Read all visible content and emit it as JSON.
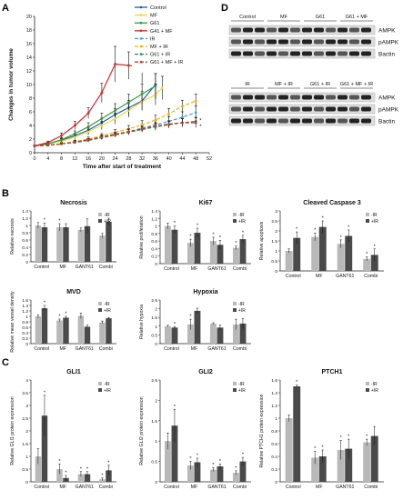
{
  "panel_letters": {
    "A": "A",
    "B": "B",
    "C": "C",
    "D": "D"
  },
  "colors": {
    "dark": "#4a4a4a",
    "light": "#b8b8b8",
    "axis": "#222"
  },
  "chart_data": [
    {
      "id": "A",
      "type": "line",
      "xlabel": "Time after start of treatment",
      "ylabel": "Changes in tumor volume",
      "xlim": [
        0,
        52
      ],
      "ylim": [
        0,
        20
      ],
      "xticks": [
        0,
        4,
        8,
        12,
        16,
        20,
        24,
        28,
        32,
        36,
        40,
        44,
        48,
        52
      ],
      "yticks": [
        0,
        2,
        4,
        6,
        8,
        10,
        12,
        14,
        16,
        18,
        20
      ],
      "series": [
        {
          "name": "Control",
          "color": "#1f5fa8",
          "dash": "",
          "marker": "diamond",
          "x": [
            0,
            4,
            8,
            12,
            16,
            20,
            24,
            28,
            32,
            36
          ],
          "y": [
            1,
            1.3,
            1.8,
            2.5,
            3.3,
            4.4,
            5.6,
            6.6,
            7.6,
            10
          ],
          "err": [
            0.1,
            0.2,
            0.3,
            0.4,
            0.5,
            0.7,
            0.9,
            1.1,
            1.4,
            2.1
          ]
        },
        {
          "name": "MF",
          "color": "#f2d43a",
          "dash": "",
          "marker": "square",
          "x": [
            0,
            4,
            8,
            12,
            16,
            20,
            24,
            28,
            32,
            36,
            38
          ],
          "y": [
            1,
            1.3,
            1.7,
            2.3,
            3.1,
            4,
            5,
            6.2,
            7.5,
            8.5,
            9.5
          ],
          "err": [
            0.1,
            0.2,
            0.3,
            0.4,
            0.5,
            0.6,
            0.8,
            1,
            1.2,
            1.5,
            1.7
          ]
        },
        {
          "name": "G61",
          "color": "#2f9a3a",
          "dash": "",
          "marker": "triangle",
          "x": [
            0,
            4,
            8,
            12,
            16,
            20,
            24,
            28,
            32,
            36
          ],
          "y": [
            1,
            1.3,
            1.9,
            2.8,
            3.8,
            5,
            6.2,
            7.4,
            8.6,
            9.8
          ],
          "err": [
            0.1,
            0.2,
            0.3,
            0.4,
            0.6,
            0.8,
            1,
            1.2,
            1.5,
            1.8
          ]
        },
        {
          "name": "G41 + MF",
          "color": "#d62728",
          "dash": "",
          "marker": "x",
          "x": [
            0,
            4,
            8,
            12,
            16,
            20,
            24,
            28,
            32,
            34
          ],
          "y": [
            1,
            1.5,
            2.5,
            4,
            5.8,
            8.8,
            13,
            12.8,
            12.6,
            16.8
          ],
          "err": [
            0.1,
            0.2,
            0.4,
            0.6,
            0.8,
            1.4,
            2.6,
            2,
            2.4,
            0.8
          ]
        },
        {
          "name": "IR",
          "color": "#3fa0d6",
          "dash": "4,2",
          "marker": "x",
          "x": [
            0,
            4,
            8,
            12,
            16,
            20,
            24,
            28,
            32,
            36,
            40,
            44,
            48
          ],
          "y": [
            1,
            1.1,
            1.3,
            1.6,
            1.9,
            2.3,
            2.7,
            3.1,
            3.6,
            4.1,
            4.6,
            5.2,
            5.9
          ],
          "err": [
            0.1,
            0.1,
            0.1,
            0.2,
            0.2,
            0.3,
            0.3,
            0.4,
            0.5,
            0.6,
            0.7,
            0.8,
            1
          ]
        },
        {
          "name": "MF + IR",
          "color": "#f3b400",
          "dash": "4,2",
          "marker": "circle",
          "x": [
            0,
            4,
            8,
            12,
            16,
            20,
            24,
            28,
            32,
            36,
            40,
            44,
            48
          ],
          "y": [
            1,
            1.1,
            1.3,
            1.6,
            2,
            2.5,
            3,
            3.5,
            4.1,
            4.8,
            5.7,
            6.8,
            7.6
          ],
          "err": [
            0.1,
            0.1,
            0.2,
            0.2,
            0.3,
            0.3,
            0.4,
            0.5,
            0.6,
            0.7,
            0.8,
            0.9,
            1
          ]
        },
        {
          "name": "G61 + IR",
          "color": "#2e8b57",
          "dash": "4,2",
          "marker": "plus",
          "x": [
            0,
            4,
            8,
            12,
            16,
            20,
            24,
            28,
            32,
            36,
            40,
            44,
            48
          ],
          "y": [
            1,
            1.1,
            1.3,
            1.5,
            1.8,
            2.2,
            2.6,
            3,
            3.4,
            3.8,
            4.1,
            4.4,
            4.6
          ],
          "err": [
            0.1,
            0.1,
            0.1,
            0.2,
            0.2,
            0.3,
            0.3,
            0.4,
            0.4,
            0.5,
            0.5,
            0.6,
            0.6
          ]
        },
        {
          "name": "G61 + MF + IR",
          "color": "#c0392b",
          "dash": "4,2",
          "marker": "dash",
          "x": [
            0,
            4,
            8,
            12,
            16,
            20,
            24,
            28,
            32,
            36,
            40,
            44,
            48
          ],
          "y": [
            1,
            1.1,
            1.3,
            1.6,
            1.9,
            2.3,
            2.7,
            3.1,
            3.5,
            3.9,
            4.2,
            4.4,
            4.4
          ],
          "err": [
            0.1,
            0.1,
            0.1,
            0.2,
            0.2,
            0.3,
            0.3,
            0.4,
            0.4,
            0.5,
            0.5,
            0.6,
            0.7
          ]
        }
      ],
      "annotations": [
        "*",
        "*"
      ]
    },
    {
      "id": "Necrosis",
      "type": "bar",
      "title": "Necrosis",
      "ylabel": "Relative necrosis",
      "ylim": [
        0,
        1.4
      ],
      "yticks": [
        "0",
        "0.2",
        "0.4",
        "0.6",
        "0.8",
        "1",
        "1.2",
        "1.4"
      ],
      "categories": [
        "Control",
        "MF",
        "GANT61",
        "Combi"
      ],
      "series": [
        {
          "name": "-IR",
          "values": [
            1,
            0.95,
            0.88,
            0.72
          ],
          "err": [
            0.08,
            0.1,
            0.05,
            0.06
          ]
        },
        {
          "name": "+IR",
          "values": [
            0.95,
            0.95,
            0.98,
            1.1
          ],
          "err": [
            0.12,
            0.1,
            0.2,
            0.1
          ]
        }
      ],
      "stars": [
        "*",
        "*"
      ],
      "legend_loc": "top-right"
    },
    {
      "id": "Ki67",
      "type": "bar",
      "title": "Ki67",
      "ylabel": "Relative proliferation",
      "ylim": [
        0,
        1.4
      ],
      "yticks": [
        "0",
        "0.2",
        "0.4",
        "0.6",
        "0.8",
        "1",
        "1.2",
        "1.4"
      ],
      "categories": [
        "Control",
        "MF",
        "GANT61",
        "Combi"
      ],
      "series": [
        {
          "name": "-IR",
          "values": [
            1,
            0.55,
            0.6,
            0.42
          ],
          "err": [
            0.08,
            0.1,
            0.1,
            0.05
          ]
        },
        {
          "name": "+IR",
          "values": [
            0.9,
            0.82,
            0.5,
            0.65
          ],
          "err": [
            0.1,
            0.12,
            0.12,
            0.1
          ]
        }
      ],
      "stars": [
        "*",
        "*",
        "*",
        "*",
        "*",
        "*",
        "*"
      ],
      "legend_loc": "top-right"
    },
    {
      "id": "Caspase",
      "type": "bar",
      "title": "Cleaved Caspase 3",
      "ylabel": "Relative apoptosis",
      "ylim": [
        0,
        3
      ],
      "yticks": [
        "0",
        "0.5",
        "1",
        "1.5",
        "2",
        "2.5",
        "3"
      ],
      "categories": [
        "Control",
        "MF",
        "GANT61",
        "Combi"
      ],
      "series": [
        {
          "name": "-IR",
          "values": [
            1,
            1.7,
            1.35,
            0.6
          ],
          "err": [
            0.1,
            0.2,
            0.2,
            0.1
          ]
        },
        {
          "name": "+IR",
          "values": [
            1.65,
            2.2,
            1.75,
            0.8
          ],
          "err": [
            0.3,
            0.3,
            0.3,
            0.3
          ]
        }
      ],
      "stars": [
        "*",
        "*",
        "*",
        "*",
        "*",
        "*",
        "*"
      ],
      "legend_loc": "top-right"
    },
    {
      "id": "MVD",
      "type": "bar",
      "title": "MVD",
      "ylabel": "Relative mean vessel density",
      "ylim": [
        0,
        1.6
      ],
      "yticks": [
        "0",
        "0.2",
        "0.4",
        "0.6",
        "0.8",
        "1",
        "1.2",
        "1.4",
        "1.6"
      ],
      "categories": [
        "Control",
        "MF",
        "GANT61",
        "Combi"
      ],
      "series": [
        {
          "name": "-IR",
          "values": [
            1,
            0.85,
            1.02,
            0.78
          ],
          "err": [
            0.06,
            0.05,
            0.1,
            0.05
          ]
        },
        {
          "name": "+IR",
          "values": [
            1.3,
            0.95,
            0.62,
            0.93
          ],
          "err": [
            0.1,
            0.05,
            0.06,
            0.03
          ]
        }
      ],
      "stars": [
        "*",
        "*",
        "*"
      ],
      "legend_loc": "top-right"
    },
    {
      "id": "Hypoxia",
      "type": "bar",
      "title": "Hypoxia",
      "ylabel": "Relative hypoxia",
      "ylim": [
        0,
        2.5
      ],
      "yticks": [
        "0",
        "0.5",
        "1",
        "1.5",
        "2",
        "2.5"
      ],
      "categories": [
        "Control",
        "MF",
        "GANT61",
        "Combi"
      ],
      "series": [
        {
          "name": "-IR",
          "values": [
            1,
            1.1,
            1.15,
            1.1
          ],
          "err": [
            0.05,
            0.3,
            0.05,
            0.3
          ]
        },
        {
          "name": "+IR",
          "values": [
            0.92,
            1.88,
            0.92,
            1.15
          ],
          "err": [
            0.05,
            0.15,
            0.15,
            0.3
          ]
        }
      ],
      "stars": [
        "*",
        "*"
      ],
      "legend_loc": "top-right"
    },
    {
      "id": "GLI1",
      "type": "bar",
      "title": "GLI1",
      "ylabel": "Relative GLI1 protein expression",
      "ylim": [
        0,
        4
      ],
      "yticks": [
        "0",
        "0.5",
        "1",
        "1.5",
        "2",
        "2.5",
        "3",
        "3.5",
        "4"
      ],
      "categories": [
        "Control",
        "MF",
        "GANT61",
        "Combi"
      ],
      "series": [
        {
          "name": "-IR",
          "values": [
            1,
            0.5,
            0.3,
            0.1
          ],
          "err": [
            0.3,
            0.2,
            0.1,
            0.05
          ]
        },
        {
          "name": "+IR",
          "values": [
            2.6,
            0.15,
            0.3,
            0.45
          ],
          "err": [
            0.8,
            0.1,
            0.1,
            0.2
          ]
        }
      ],
      "stars": [
        "*",
        "*",
        "*",
        "*",
        "*",
        "*",
        "*"
      ],
      "legend_loc": "top-right"
    },
    {
      "id": "GLI2",
      "type": "bar",
      "title": "GLI2",
      "ylabel": "Relative GLI2 protein expression",
      "ylim": [
        0,
        2.5
      ],
      "yticks": [
        "0",
        "0.5",
        "1",
        "1.5",
        "2",
        "2.5"
      ],
      "categories": [
        "Control",
        "MF",
        "GANT61",
        "Combi"
      ],
      "series": [
        {
          "name": "-IR",
          "values": [
            1,
            0.4,
            0.3,
            0.22
          ],
          "err": [
            0.2,
            0.1,
            0.05,
            0.05
          ]
        },
        {
          "name": "+IR",
          "values": [
            1.38,
            0.48,
            0.38,
            0.5
          ],
          "err": [
            0.4,
            0.1,
            0.06,
            0.1
          ]
        }
      ],
      "stars": [
        "*",
        "*",
        "*",
        "*",
        "*",
        "*",
        "*"
      ],
      "legend_loc": "top-right"
    },
    {
      "id": "PTCH1",
      "type": "bar",
      "title": "PTCH1",
      "ylabel": "Relative PTCH1 protein expression",
      "ylim": [
        0,
        1.6
      ],
      "yticks": [
        "0",
        "0.2",
        "0.4",
        "0.6",
        "0.8",
        "1",
        "1.2",
        "1.4",
        "1.6"
      ],
      "categories": [
        "Control",
        "MF",
        "GANT61",
        "Combi"
      ],
      "series": [
        {
          "name": "-IR",
          "values": [
            1,
            0.38,
            0.5,
            0.62
          ],
          "err": [
            0.05,
            0.1,
            0.15,
            0.05
          ]
        },
        {
          "name": "+IR",
          "values": [
            1.5,
            0.4,
            0.52,
            0.72
          ],
          "err": [
            0.02,
            0.1,
            0.15,
            0.15
          ]
        }
      ],
      "stars": [
        "*",
        "*",
        "*",
        "*",
        "*",
        "*"
      ],
      "legend_loc": "top-right"
    }
  ],
  "blots": [
    {
      "id": "D1",
      "headers": [
        "Control",
        "MF",
        "G61",
        "G61 + MF"
      ],
      "rows": [
        "AMPK",
        "pAMPK",
        "Bactin"
      ]
    },
    {
      "id": "D2",
      "headers": [
        "IR",
        "MF + IR",
        "G61 + IR",
        "G61 + MF + IR"
      ],
      "rows": [
        "AMPK",
        "pAMPK",
        "Bactin"
      ]
    }
  ]
}
